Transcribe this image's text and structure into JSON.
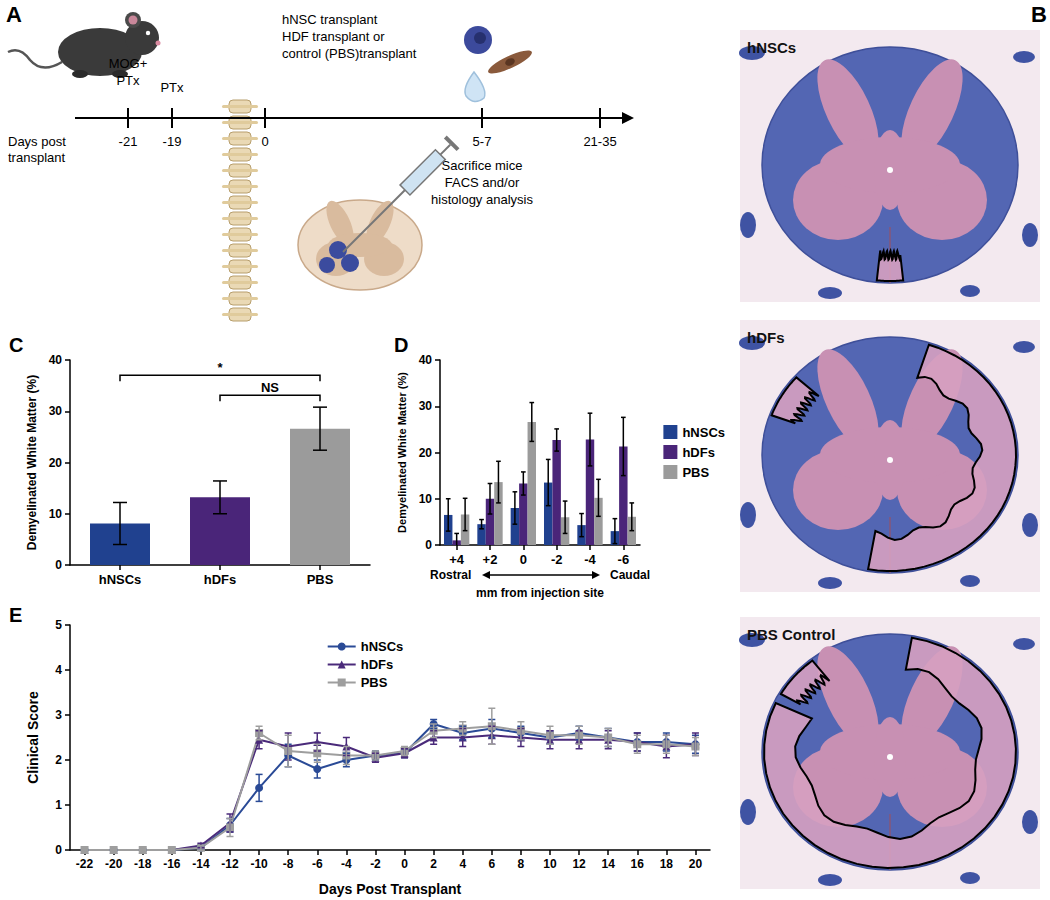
{
  "chart_data": [
    {
      "title": "C",
      "type": "bar",
      "categories": [
        "hNSCs",
        "hDFs",
        "PBS"
      ],
      "values": [
        8.1,
        13.2,
        26.6
      ],
      "errors": [
        4.1,
        3.2,
        4.2
      ],
      "colors": [
        "#20418f",
        "#4a2579",
        "#9b9b9b"
      ],
      "ylabel": "Demyelinated White Matter (%)",
      "ylim": [
        0,
        40
      ],
      "yticks": [
        0,
        10,
        20,
        30,
        40
      ],
      "grid": false,
      "annotations": [
        {
          "text": "*",
          "from": "hNSCs",
          "to": "PBS"
        },
        {
          "text": "NS",
          "from": "hDFs",
          "to": "PBS"
        }
      ]
    },
    {
      "title": "D",
      "type": "bar",
      "categories": [
        "+4",
        "+2",
        "0",
        "-2",
        "-4",
        "-6"
      ],
      "xlabel": "mm from injection site",
      "annotations": [
        "Rostral",
        "Caudal"
      ],
      "ylabel": "Demyelinated White Matter (%)",
      "ylim": [
        0,
        40
      ],
      "yticks": [
        0,
        10,
        20,
        30,
        40
      ],
      "grid": false,
      "legend": "right",
      "series": [
        {
          "name": "hNSCs",
          "color": "#20418f",
          "values": [
            6.5,
            4.5,
            8.0,
            13.5,
            4.3,
            3.0
          ],
          "errors": [
            3.5,
            1.0,
            3.5,
            5.0,
            2.5,
            2.7
          ]
        },
        {
          "name": "hDFs",
          "color": "#4a2579",
          "values": [
            1.0,
            10.0,
            13.3,
            22.7,
            22.8,
            21.3
          ],
          "errors": [
            1.5,
            3.3,
            2.5,
            2.4,
            5.7,
            6.3
          ]
        },
        {
          "name": "PBS",
          "color": "#9b9b9b",
          "values": [
            6.6,
            13.6,
            26.6,
            6.0,
            10.2,
            6.1
          ],
          "errors": [
            3.5,
            4.5,
            4.2,
            3.5,
            4.0,
            3.0
          ]
        }
      ]
    },
    {
      "title": "E",
      "type": "line",
      "x": [
        -22,
        -20,
        -18,
        -16,
        -14,
        -12,
        -10,
        -8,
        -6,
        -4,
        -2,
        0,
        2,
        4,
        6,
        8,
        10,
        12,
        14,
        16,
        18,
        20
      ],
      "xlim": [
        -23,
        21
      ],
      "xticks": [
        -22,
        -20,
        -18,
        -16,
        -14,
        -12,
        -10,
        -8,
        -6,
        -4,
        -2,
        0,
        2,
        4,
        6,
        8,
        10,
        12,
        14,
        16,
        18,
        20
      ],
      "xlabel": "Days Post Transplant",
      "ylabel": "Clinical Score",
      "ylim": [
        0,
        5
      ],
      "yticks": [
        0,
        1,
        2,
        3,
        4,
        5
      ],
      "grid": false,
      "legend": "top",
      "series": [
        {
          "name": "hNSCs",
          "color": "#2a4a96",
          "marker": "circle",
          "values": [
            0,
            0,
            0,
            0,
            0.05,
            0.55,
            1.38,
            2.1,
            1.8,
            2.0,
            2.1,
            2.15,
            2.8,
            2.6,
            2.7,
            2.6,
            2.5,
            2.6,
            2.5,
            2.4,
            2.4,
            2.35
          ],
          "errors": [
            0,
            0,
            0,
            0,
            0.05,
            0.15,
            0.3,
            0.25,
            0.2,
            0.15,
            0.1,
            0.1,
            0.1,
            0.15,
            0.2,
            0.15,
            0.15,
            0.15,
            0.2,
            0.2,
            0.2,
            0.2
          ]
        },
        {
          "name": "hDFs",
          "color": "#4a2a7a",
          "marker": "triangle",
          "values": [
            0,
            0,
            0,
            0,
            0.1,
            0.6,
            2.45,
            2.3,
            2.4,
            2.3,
            2.05,
            2.15,
            2.5,
            2.5,
            2.55,
            2.5,
            2.45,
            2.45,
            2.45,
            2.4,
            2.3,
            2.35
          ],
          "errors": [
            0,
            0,
            0,
            0,
            0.05,
            0.2,
            0.2,
            0.3,
            0.2,
            0.2,
            0.1,
            0.1,
            0.15,
            0.2,
            0.2,
            0.2,
            0.2,
            0.2,
            0.2,
            0.2,
            0.25,
            0.25
          ]
        },
        {
          "name": "PBS",
          "color": "#9e9e9e",
          "marker": "square",
          "values": [
            0,
            0,
            0,
            0,
            0.05,
            0.5,
            2.6,
            2.2,
            2.15,
            2.1,
            2.1,
            2.2,
            2.65,
            2.7,
            2.75,
            2.65,
            2.55,
            2.55,
            2.5,
            2.35,
            2.35,
            2.3
          ],
          "errors": [
            0,
            0,
            0,
            0,
            0.05,
            0.2,
            0.15,
            0.35,
            0.2,
            0.2,
            0.1,
            0.1,
            0.15,
            0.15,
            0.4,
            0.2,
            0.2,
            0.2,
            0.2,
            0.2,
            0.2,
            0.2
          ]
        }
      ]
    }
  ],
  "panel_a": {
    "panel": "A",
    "axis_label": [
      "Days post",
      "transplant"
    ],
    "ticks": [
      "-21",
      "-19",
      "0",
      "5-7",
      "21-35"
    ],
    "events": [
      {
        "tick": "-21",
        "lines": [
          "MOG+",
          "PTx"
        ]
      },
      {
        "tick": "-19",
        "lines": [
          "PTx"
        ]
      },
      {
        "tick": "0",
        "lines": [
          "hNSC transplant",
          "HDF transplant or",
          "control (PBS)transplant"
        ]
      },
      {
        "tick": "5-7",
        "lines": [
          "Sacrifice mice",
          "FACS and/or",
          "histology analysis"
        ]
      }
    ]
  },
  "panel_b": {
    "panel": "B",
    "sections": [
      "hNSCs",
      "hDFs",
      "PBS Control"
    ]
  }
}
